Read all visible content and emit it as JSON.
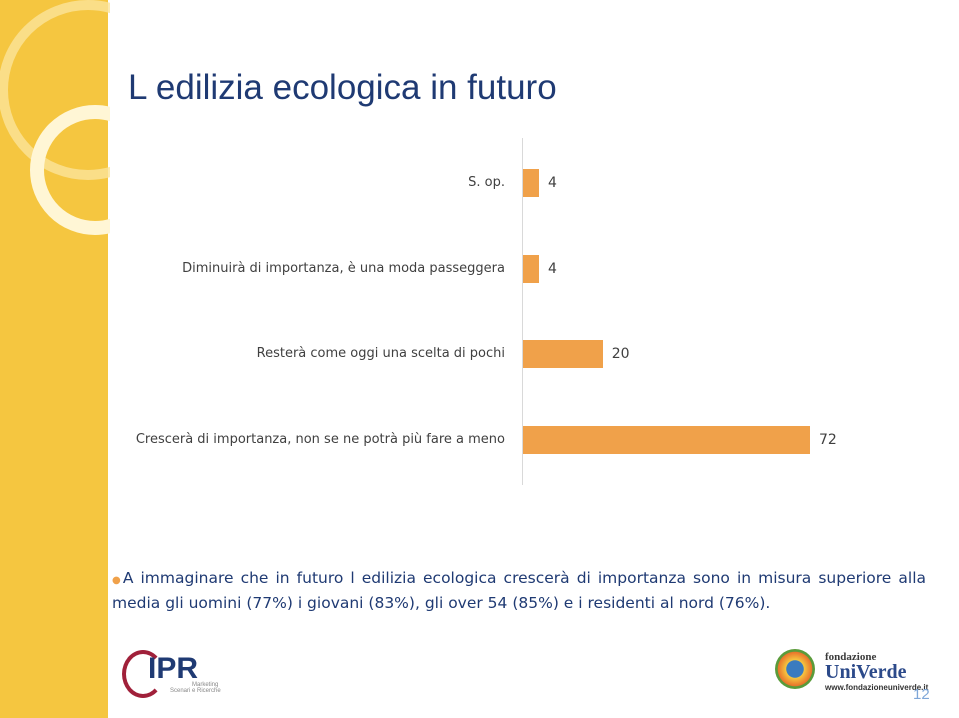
{
  "chart_data": {
    "type": "bar",
    "orientation": "horizontal",
    "title": "L edilizia ecologica in futuro",
    "categories": [
      "S. op.",
      "Diminuirà di importanza, è una moda passeggera",
      "Resterà come oggi una scelta di pochi",
      "Crescerà di importanza, non se ne potrà più fare a meno"
    ],
    "values": [
      4,
      4,
      20,
      72
    ],
    "color": "#f0a14a"
  },
  "slide": {
    "bullet": "A immaginare che in futuro l edilizia ecologica crescerà di importanza sono in misura superiore alla media gli uomini (77%) i giovani (83%), gli over 54 (85%) e i residenti al nord (76%).",
    "page_number": "12"
  },
  "logos": {
    "ipr": "IPR",
    "ipr_line1": "Marketing",
    "ipr_line2": "Scenari e Ricerche",
    "fondazione": "fondazione",
    "universe": "UniVerde",
    "url": "www.fondazioneuniverde.it"
  }
}
